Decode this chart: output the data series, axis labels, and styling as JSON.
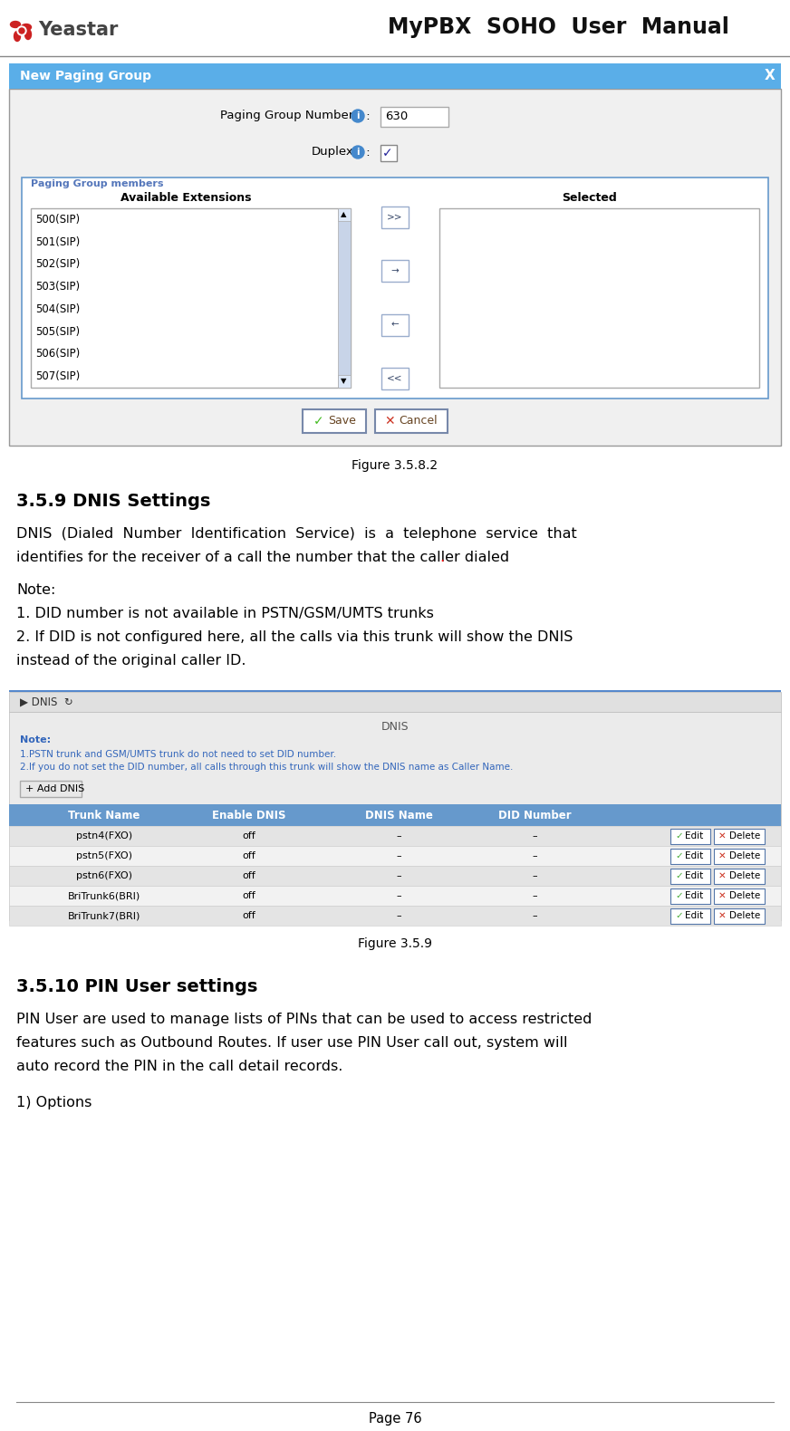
{
  "title": "MyPBX  SOHO  User  Manual",
  "page_num": "Page 76",
  "logo_text": "Yeastar",
  "fig_caption_1": "Figure 3.5.8.2",
  "section_title_1": "3.5.9 DNIS Settings",
  "section_body_1a": "DNIS  (Dialed  Number  Identification  Service)  is  a  telephone  service  that",
  "section_body_1b": "identifies for the receiver of a call the number that the caller dialed",
  "note_label": "Note:",
  "note_1": "1. DID number is not available in PSTN/GSM/UMTS trunks",
  "note_2a": "2. If DID is not configured here, all the calls via this trunk will show the DNIS",
  "note_2b": "instead of the original caller ID.",
  "fig_caption_2": "Figure 3.5.9",
  "section_title_2": "3.5.10 PIN User settings",
  "section_body_2a": "PIN User are used to manage lists of PINs that can be used to access restricted",
  "section_body_2b": "features such as Outbound Routes. If user use PIN User call out, system will",
  "section_body_2c": "auto record the PIN in the call detail records.",
  "options_label": "1) Options",
  "paging_group_dialog": {
    "header": "New Paging Group",
    "field1_label": "Paging Group Number",
    "field1_value": "630",
    "field2_label": "Duplex",
    "avail_label": "Available Extensions",
    "selected_label": "Selected",
    "extensions": [
      "500(SIP)",
      "501(SIP)",
      "502(SIP)",
      "503(SIP)",
      "504(SIP)",
      "505(SIP)",
      "506(SIP)",
      "507(SIP)"
    ],
    "arrow_buttons": [
      ">>",
      "→",
      "←",
      "<<"
    ],
    "save_btn": "Save",
    "cancel_btn": "Cancel"
  },
  "dnis_table": {
    "header_text": "DNIS",
    "note_blue_1": "Note:",
    "note_blue_2": "1.PSTN trunk and GSM/UMTS trunk do not need to set DID number.",
    "note_blue_3": "2.If you do not set the DID number, all calls through this trunk will show the DNIS name as Caller Name.",
    "add_btn": "+ Add DNIS",
    "columns": [
      "Trunk Name",
      "Enable DNIS",
      "DNIS Name",
      "DID Number"
    ],
    "rows": [
      [
        "pstn4(FXO)",
        "off",
        "–",
        "–"
      ],
      [
        "pstn5(FXO)",
        "off",
        "–",
        "–"
      ],
      [
        "pstn6(FXO)",
        "off",
        "–",
        "–"
      ],
      [
        "BriTrunk6(BRI)",
        "off",
        "–",
        "–"
      ],
      [
        "BriTrunk7(BRI)",
        "off",
        "–",
        "–"
      ]
    ]
  },
  "colors": {
    "header_bg": "#5aaee8",
    "dialog_bg": "#f0f0f0",
    "dialog_border": "#999999",
    "members_border": "#6699cc",
    "table_header_bg": "#6699cc",
    "table_row_even": "#e4e4e4",
    "table_row_odd": "#f2f2f2",
    "blue_note": "#3366bb",
    "dnis_top_border": "#5588cc",
    "dnis_bar_bg": "#e0e0e0",
    "dnis_body_bg": "#ebebeb"
  }
}
